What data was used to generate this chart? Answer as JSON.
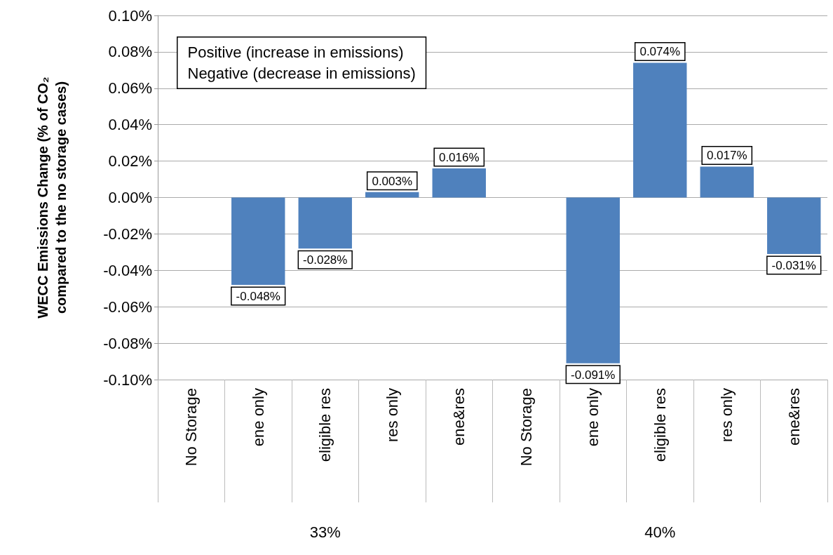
{
  "chart_data": {
    "type": "bar",
    "ylabel": "WECC Emissions Change (% of CO₂\ncompared to the no storage cases)",
    "categories": [
      "No Storage",
      "ene only",
      "eligible res",
      "res only",
      "ene&res",
      "No Storage",
      "ene only",
      "eligible res",
      "res only",
      "ene&res"
    ],
    "values": [
      0,
      -0.048,
      -0.028,
      0.003,
      0.016,
      0,
      -0.091,
      0.074,
      0.017,
      -0.031
    ],
    "value_labels": [
      null,
      "-0.048%",
      "-0.028%",
      "0.003%",
      "0.016%",
      null,
      "-0.091%",
      "0.074%",
      "0.017%",
      "-0.031%"
    ],
    "color": "#4f81bd",
    "ylim": [
      -0.1,
      0.1
    ],
    "yticks": [
      {
        "value": -0.1,
        "label": "-0.10%"
      },
      {
        "value": -0.08,
        "label": "-0.08%"
      },
      {
        "value": -0.06,
        "label": "-0.06%"
      },
      {
        "value": -0.04,
        "label": "-0.04%"
      },
      {
        "value": -0.02,
        "label": "-0.02%"
      },
      {
        "value": 0,
        "label": "0.00%"
      },
      {
        "value": 0.02,
        "label": "0.02%"
      },
      {
        "value": 0.04,
        "label": "0.04%"
      },
      {
        "value": 0.06,
        "label": "0.06%"
      },
      {
        "value": 0.08,
        "label": "0.08%"
      },
      {
        "value": 0.1,
        "label": "0.10%"
      }
    ],
    "grid": "y",
    "annotations": [
      "Positive (increase in emissions)\nNegative (decrease in emissions)",
      "33%",
      "40%"
    ]
  }
}
